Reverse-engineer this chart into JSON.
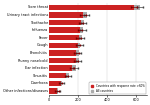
{
  "categories": [
    "Sore throat",
    "Urinary tract infections",
    "Toothache",
    "Influenza",
    "Fever",
    "Cough",
    "Bronchitis",
    "Runny nose/cold",
    "Ear infection",
    "Sinusitis",
    "Diarrhoea",
    "Other infections/diseases"
  ],
  "red_values": [
    590,
    235,
    220,
    215,
    205,
    200,
    190,
    185,
    160,
    120,
    80,
    55
  ],
  "gray_values": [
    630,
    260,
    240,
    235,
    225,
    215,
    205,
    205,
    185,
    135,
    90,
    65
  ],
  "red_ci_low": [
    570,
    215,
    205,
    200,
    190,
    185,
    175,
    170,
    145,
    108,
    68,
    43
  ],
  "red_ci_high": [
    610,
    255,
    235,
    230,
    220,
    215,
    205,
    200,
    175,
    132,
    92,
    67
  ],
  "gray_ci_low": [
    608,
    240,
    222,
    217,
    207,
    197,
    187,
    187,
    167,
    117,
    77,
    52
  ],
  "gray_ci_high": [
    652,
    280,
    258,
    253,
    243,
    233,
    223,
    223,
    203,
    153,
    103,
    78
  ],
  "red_color": "#cc2222",
  "gray_color": "#aaaaaa",
  "xlim": [
    0,
    680
  ],
  "xticks": [
    0,
    200,
    400,
    600
  ],
  "bar_height": 0.72,
  "legend_red": "Countries with response rate >60%",
  "legend_gray": "All countries"
}
